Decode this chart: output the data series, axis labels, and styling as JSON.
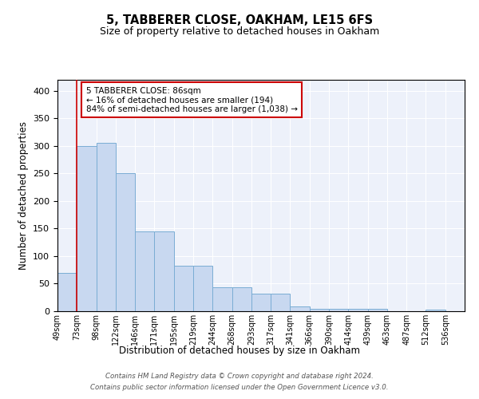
{
  "title1": "5, TABBERER CLOSE, OAKHAM, LE15 6FS",
  "title2": "Size of property relative to detached houses in Oakham",
  "xlabel": "Distribution of detached houses by size in Oakham",
  "ylabel": "Number of detached properties",
  "bar_color": "#c8d8f0",
  "bar_edge_color": "#7aadd4",
  "bg_color": "#edf1fa",
  "grid_color": "#ffffff",
  "categories": [
    "49sqm",
    "73sqm",
    "98sqm",
    "122sqm",
    "146sqm",
    "171sqm",
    "195sqm",
    "219sqm",
    "244sqm",
    "268sqm",
    "293sqm",
    "317sqm",
    "341sqm",
    "366sqm",
    "390sqm",
    "414sqm",
    "439sqm",
    "463sqm",
    "487sqm",
    "512sqm",
    "536sqm"
  ],
  "values": [
    70,
    300,
    305,
    250,
    145,
    145,
    82,
    82,
    44,
    44,
    32,
    32,
    8,
    5,
    5,
    5,
    5,
    0,
    0,
    3,
    0
  ],
  "red_line_x": 1.0,
  "annotation_text": "5 TABBERER CLOSE: 86sqm\n← 16% of detached houses are smaller (194)\n84% of semi-detached houses are larger (1,038) →",
  "annotation_box_color": "#ffffff",
  "annotation_box_edge_color": "#cc0000",
  "footer_line1": "Contains HM Land Registry data © Crown copyright and database right 2024.",
  "footer_line2": "Contains public sector information licensed under the Open Government Licence v3.0.",
  "ylim": [
    0,
    420
  ],
  "yticks": [
    0,
    50,
    100,
    150,
    200,
    250,
    300,
    350,
    400
  ]
}
